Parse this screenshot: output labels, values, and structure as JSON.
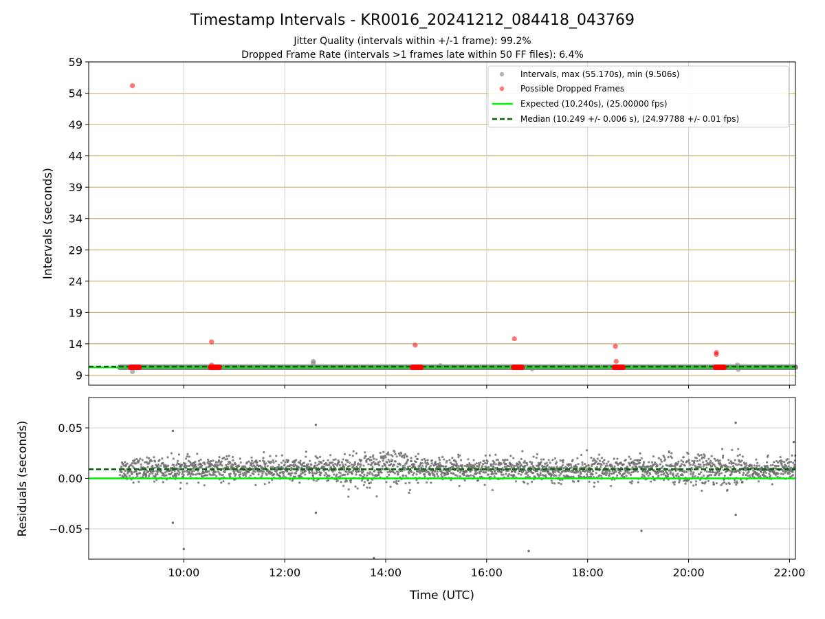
{
  "figure": {
    "title": "Timestamp Intervals - KR0016_20241212_084418_043769",
    "subtitle_1": "Jitter Quality (intervals within +/-1 frame): 99.2%",
    "subtitle_2": "Dropped Frame Rate (intervals >1 frames late within 50 FF files): 6.4%",
    "xlabel": "Time (UTC)"
  },
  "chart_data": [
    {
      "type": "scatter",
      "ylabel": "Intervals (seconds)",
      "xlim": [
        "08:07",
        "22:07"
      ],
      "ylim": [
        7.4,
        59
      ],
      "yticks": [
        "9",
        "14",
        "19",
        "24",
        "29",
        "34",
        "39",
        "44",
        "49",
        "54",
        "59"
      ],
      "grid": true,
      "legend_position": "top-right",
      "legend": [
        "Intervals, max (55.170s), min (9.506s)",
        "Possible Dropped Frames",
        "Expected (10.240s), (25.00000 fps)",
        "Median (10.249 +/- 0.006 s), (24.97788 +/- 0.01 fps)"
      ],
      "colors": {
        "intervals": "#808080",
        "dropped": "#ff0000",
        "expected": "#00ee00",
        "median": "#006400",
        "hgrid": "#c8b46e"
      },
      "intervals_band": {
        "x_start": "08:44",
        "x_end": "22:07",
        "y": 10.25
      },
      "interval_outliers": [
        {
          "x": "08:59",
          "y": 9.55
        },
        {
          "x": "12:34",
          "y": 11.2
        },
        {
          "x": "12:34",
          "y": 10.9
        },
        {
          "x": "15:05",
          "y": 10.5
        },
        {
          "x": "16:54",
          "y": 10.0
        },
        {
          "x": "19:50",
          "y": 10.3
        },
        {
          "x": "20:58",
          "y": 10.6
        },
        {
          "x": "20:59",
          "y": 9.9
        }
      ],
      "dropped_frames": [
        {
          "x": "08:59",
          "y": 55.2
        },
        {
          "x": "10:33",
          "y": 14.3
        },
        {
          "x": "10:33",
          "y": 10.6
        },
        {
          "x": "14:35",
          "y": 13.8
        },
        {
          "x": "16:33",
          "y": 14.8
        },
        {
          "x": "18:33",
          "y": 13.6
        },
        {
          "x": "18:34",
          "y": 11.2
        },
        {
          "x": "20:33",
          "y": 12.6
        },
        {
          "x": "20:33",
          "y": 12.3
        }
      ],
      "dropped_clusters": [
        {
          "x_start": "08:57",
          "x_end": "09:07",
          "y": 10.25
        },
        {
          "x_start": "10:32",
          "x_end": "10:42",
          "y": 10.25
        },
        {
          "x_start": "14:32",
          "x_end": "14:42",
          "y": 10.25
        },
        {
          "x_start": "16:32",
          "x_end": "16:42",
          "y": 10.25
        },
        {
          "x_start": "18:32",
          "x_end": "18:42",
          "y": 10.25
        },
        {
          "x_start": "20:32",
          "x_end": "20:42",
          "y": 10.25
        }
      ],
      "expected": 10.24,
      "median": 10.249
    },
    {
      "type": "scatter",
      "ylabel": "Residuals (seconds)",
      "xlim": [
        "08:07",
        "22:07"
      ],
      "ylim": [
        -0.08,
        0.08
      ],
      "yticks": [
        "0.05",
        "0.00",
        "−0.05"
      ],
      "xticks": [
        "10:00",
        "12:00",
        "14:00",
        "16:00",
        "18:00",
        "20:00",
        "22:00"
      ],
      "grid": true,
      "expected": 0.0,
      "median": 0.009,
      "residual_range": {
        "x_start": "08:44",
        "x_end": "22:07"
      },
      "residual_outliers": [
        {
          "x": "09:47",
          "y": 0.047
        },
        {
          "x": "09:47",
          "y": -0.044
        },
        {
          "x": "10:00",
          "y": -0.07
        },
        {
          "x": "12:37",
          "y": 0.053
        },
        {
          "x": "12:37",
          "y": -0.034
        },
        {
          "x": "13:46",
          "y": -0.079
        },
        {
          "x": "16:50",
          "y": -0.072
        },
        {
          "x": "19:04",
          "y": -0.052
        },
        {
          "x": "20:56",
          "y": 0.055
        },
        {
          "x": "20:56",
          "y": -0.036
        },
        {
          "x": "22:05",
          "y": 0.036
        }
      ]
    }
  ]
}
